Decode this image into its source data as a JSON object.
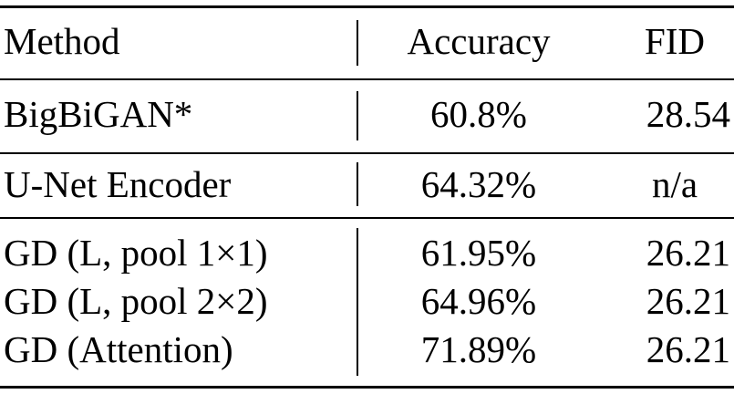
{
  "table": {
    "headers": {
      "method": "Method",
      "accuracy": "Accuracy",
      "fid": "FID"
    },
    "groups": [
      {
        "rows": [
          {
            "method": "BigBiGAN*",
            "accuracy": "60.8%",
            "fid": "28.54"
          }
        ]
      },
      {
        "rows": [
          {
            "method": "U-Net Encoder",
            "accuracy": "64.32%",
            "fid": "n/a"
          }
        ]
      },
      {
        "rows": [
          {
            "method": "GD (L, pool 1×1)",
            "accuracy": "61.95%",
            "fid": "26.21"
          },
          {
            "method": "GD (L, pool 2×2)",
            "accuracy": "64.96%",
            "fid": "26.21"
          },
          {
            "method": "GD (Attention)",
            "accuracy": "71.89%",
            "fid": "26.21"
          }
        ]
      }
    ]
  }
}
